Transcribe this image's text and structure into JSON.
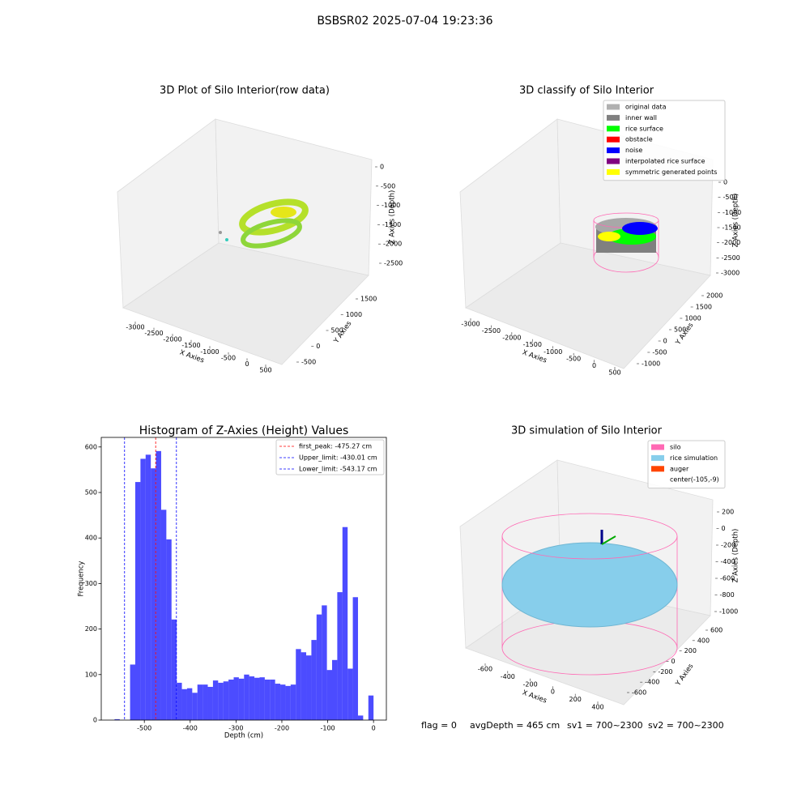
{
  "title": "BSBSR02 2025-07-04 19:23:36",
  "footer": [
    "flag = 0",
    "avgDepth = 465 cm",
    "sv1 = 700~2300",
    "sv2 = 700~2300"
  ],
  "chart_data": [
    {
      "type": "scatter3d",
      "title": "3D Plot of Silo Interior(row data)",
      "xlabel": "X Axies",
      "ylabel": "Y Axies",
      "zlabel": "Z Axies (Depth)",
      "xticks": [
        -3000,
        -2500,
        -2000,
        -1500,
        -1000,
        -500,
        0,
        500
      ],
      "yticks": [
        -500,
        0,
        500,
        1000,
        1500
      ],
      "zticks": [
        0,
        -500,
        -1000,
        -1500,
        -2000,
        -2500
      ]
    },
    {
      "type": "scatter3d",
      "title": "3D classify of Silo Interior",
      "xlabel": "X Axies",
      "ylabel": "Y Axies",
      "zlabel": "Z Axies (Depth)",
      "xticks": [
        -3000,
        -2500,
        -2000,
        -1500,
        -1000,
        -500,
        0,
        500
      ],
      "yticks": [
        -1000,
        -500,
        0,
        500,
        1000,
        1500,
        2000
      ],
      "zticks": [
        0,
        -500,
        -1000,
        -1500,
        -2000,
        -2500,
        -3000
      ],
      "legend": [
        {
          "name": "original data",
          "color": "#b0b0b0"
        },
        {
          "name": "inner wall",
          "color": "#808080"
        },
        {
          "name": "rice surface",
          "color": "#00ff00"
        },
        {
          "name": "obstacle",
          "color": "#ff0000"
        },
        {
          "name": "noise",
          "color": "#0000ff"
        },
        {
          "name": "interpolated rice surface",
          "color": "#800080"
        },
        {
          "name": "symmetric generated points",
          "color": "#ffff00"
        }
      ]
    },
    {
      "type": "histogram",
      "title": "Histogram of Z-Axies (Height) Values",
      "xlabel": "Depth (cm)",
      "ylabel": "Frequency",
      "color": "#0000ff",
      "legend": "upper right",
      "bins": [
        -565.0,
        -553.7,
        -542.4,
        -531.1,
        -519.8,
        -508.5,
        -497.2,
        -485.9,
        -474.6,
        -463.3,
        -452.0,
        -440.7,
        -429.4,
        -418.1,
        -406.8,
        -395.5,
        -384.2,
        -372.9,
        -361.6,
        -350.3,
        -339.0,
        -327.7,
        -316.4,
        -305.1,
        -293.8,
        -282.5,
        -271.2,
        -259.9,
        -248.6,
        -237.3,
        -226.0,
        -214.7,
        -203.4,
        -192.1,
        -180.8,
        -169.5,
        -158.2,
        -146.9,
        -135.6,
        -124.3,
        -113.0,
        -101.7,
        -90.4,
        -79.1,
        -67.8,
        -56.5,
        -45.2,
        -33.9,
        -22.6,
        -11.3,
        0
      ],
      "counts": [
        2,
        0,
        0,
        122,
        523,
        574,
        583,
        553,
        591,
        462,
        397,
        221,
        82,
        68,
        70,
        60,
        78,
        78,
        73,
        87,
        82,
        85,
        89,
        94,
        91,
        100,
        96,
        93,
        94,
        89,
        89,
        80,
        78,
        75,
        78,
        156,
        149,
        142,
        176,
        232,
        252,
        110,
        132,
        281,
        424,
        113,
        270,
        10,
        0,
        54
      ],
      "xlim": [
        -594,
        28
      ],
      "ylim": [
        0,
        621
      ],
      "xticks": [
        -500,
        -400,
        -300,
        -200,
        -100,
        0
      ],
      "yticks": [
        0,
        100,
        200,
        300,
        400,
        500,
        600
      ],
      "vlines": [
        {
          "name": "first_peak: -475.27 cm",
          "value": -475.27,
          "color": "#ff0000"
        },
        {
          "name": "Upper_limit: -430.01 cm",
          "value": -430.01,
          "color": "#0000ff"
        },
        {
          "name": "Lower_limit: -543.17 cm",
          "value": -543.17,
          "color": "#0000ff"
        }
      ]
    },
    {
      "type": "scatter3d",
      "title": "3D simulation of Silo Interior",
      "xlabel": "X Axies",
      "ylabel": "Y Axies",
      "zlabel": "Z Axies (Depth)",
      "xticks": [
        -600,
        -400,
        -200,
        0,
        200,
        400
      ],
      "yticks": [
        -600,
        -400,
        -200,
        0,
        200,
        400,
        600
      ],
      "zticks": [
        200,
        0,
        -200,
        -400,
        -600,
        -800,
        -1000
      ],
      "legend": [
        {
          "name": "silo",
          "color": "#ff69b4"
        },
        {
          "name": "rice simulation",
          "color": "#87ceeb"
        },
        {
          "name": "auger",
          "color": "#ff4500"
        },
        {
          "name": "center(-105,-9)"
        }
      ]
    }
  ]
}
